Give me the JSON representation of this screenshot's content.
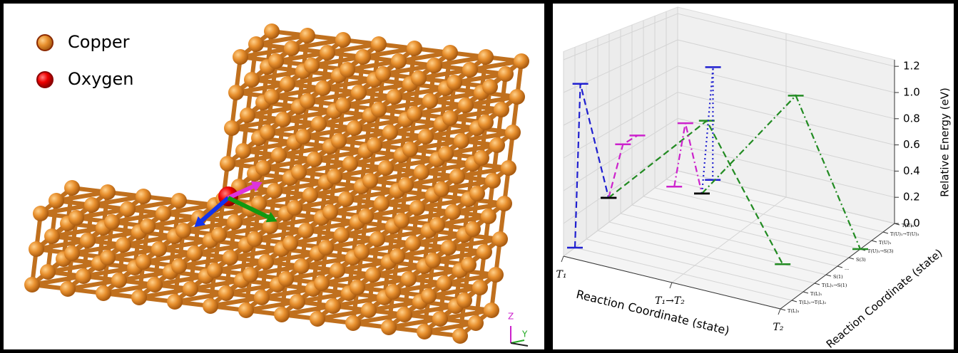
{
  "legend": {
    "items": [
      {
        "label": "Copper",
        "color": "#d9822b"
      },
      {
        "label": "Oxygen",
        "color": "#e8000b"
      }
    ]
  },
  "axis_triad": {
    "z": "Z",
    "y": "Y"
  },
  "chart_data": {
    "type": "line3d",
    "xlabel": "Reaction Coordinate (state)",
    "ylabel": "Reaction Coordinate (state)",
    "zlabel": "Relative Energy (eV)",
    "categories": [
      "T₁",
      "T₁→T₂",
      "T₂"
    ],
    "depth_categories": [
      "T(L)₃",
      "T(L)₁→T(L)₂",
      "T(L)₁",
      "T(L)₁→S(1)",
      "S(1)",
      "...",
      "S(3)",
      "T(U)₁→S(3)",
      "T(U)₁",
      "T(U)₁→T(U)₃",
      "T(U)₃"
    ],
    "zlim": [
      0,
      1.25
    ],
    "zticks": [
      {
        "value": 0,
        "label": "0.0"
      },
      0.2,
      0.4,
      0.6,
      0.8,
      {
        "value": 1,
        "label": "1.0"
      },
      1.2
    ],
    "grid": true,
    "series": [
      {
        "color": "#1f1fd0",
        "linestyle": "dashed",
        "x": [
          0,
          0.05,
          0.1
        ],
        "depth": [
          1,
          1,
          3
        ],
        "values": [
          0.0,
          1.03,
          0.23
        ],
        "marker_colors": [
          "#1f1fd0",
          "#1f1fd0",
          "#000000"
        ]
      },
      {
        "color": "#cc22cc",
        "linestyle": "dashed",
        "x": [
          0.1,
          0.18,
          0.26
        ],
        "depth": [
          3,
          3.5,
          4
        ],
        "values": [
          0.23,
          0.57,
          0.62
        ],
        "marker_colors": [
          "#000000",
          "#cc22cc",
          "#cc22cc"
        ]
      },
      {
        "color": "#228b22",
        "linestyle": "dashed",
        "x": [
          0.1,
          0.9,
          1.6
        ],
        "depth": [
          3,
          4,
          4
        ],
        "values": [
          0.23,
          0.83,
          0.0
        ],
        "marker_colors": [
          "#000000",
          "#228b22",
          "#228b22"
        ]
      },
      {
        "color": "#cc22cc",
        "linestyle": "dashdot",
        "x": [
          0.6,
          0.65,
          0.75
        ],
        "depth": [
          4,
          4.5,
          5
        ],
        "values": [
          0.34,
          0.75,
          0.27
        ],
        "marker_colors": [
          "#cc22cc",
          "#cc22cc",
          "#000000"
        ]
      },
      {
        "color": "#1f1fd0",
        "linestyle": "dotted",
        "x": [
          0.75,
          0.8,
          0.85
        ],
        "depth": [
          5,
          5.5,
          5
        ],
        "values": [
          0.27,
          1.12,
          0.38
        ],
        "marker_colors": [
          "#000000",
          "#1f1fd0",
          "#1f1fd0"
        ]
      },
      {
        "color": "#228b22",
        "linestyle": "dashdot",
        "x": [
          0.75,
          1.3,
          2.0
        ],
        "depth": [
          5,
          8,
          7
        ],
        "values": [
          0.27,
          0.92,
          0.0
        ],
        "marker_colors": [
          "#000000",
          "#228b22",
          "#228b22"
        ]
      }
    ]
  }
}
